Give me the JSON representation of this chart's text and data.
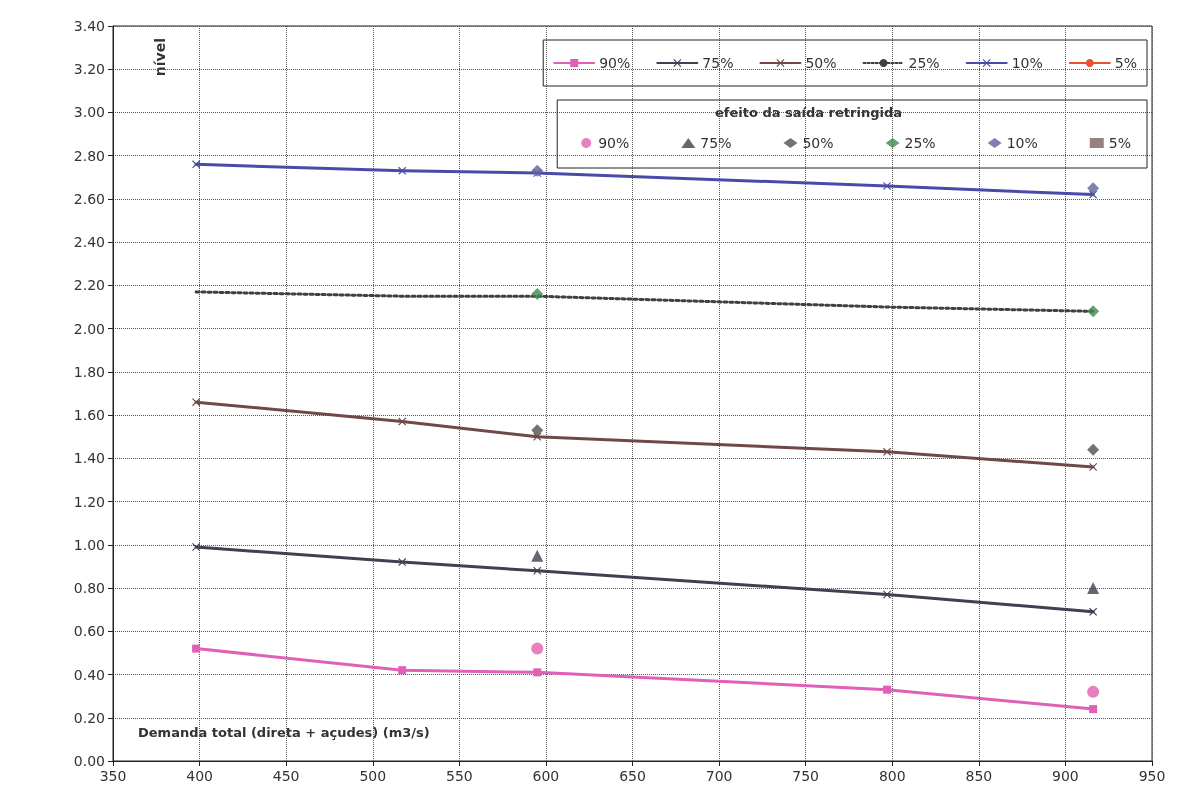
{
  "chart_data": {
    "type": "line",
    "xlabel": "Demanda total (direta + açudes) (m3/s)",
    "ylabel": "nível",
    "legend_title": "efeito da saída retringida",
    "legend": "top right",
    "grid": true,
    "xlim": [
      350,
      950
    ],
    "xticks": [
      350,
      400,
      450,
      500,
      550,
      600,
      650,
      700,
      750,
      800,
      850,
      900,
      950
    ],
    "ylim": [
      0,
      3.4
    ],
    "yticks": [
      {
        "value": 0,
        "label": "0.00"
      },
      {
        "value": 0.2,
        "label": "0.20"
      },
      {
        "value": 0.4,
        "label": "0.40"
      },
      {
        "value": 0.6,
        "label": "0.60"
      },
      {
        "value": 0.8,
        "label": "0.80"
      },
      {
        "value": 1,
        "label": "1.00"
      },
      {
        "value": 1.2,
        "label": "1.20"
      },
      {
        "value": 1.4,
        "label": "1.40"
      },
      {
        "value": 1.6,
        "label": "1.60"
      },
      {
        "value": 1.8,
        "label": "1.80"
      },
      {
        "value": 2,
        "label": "2.00"
      },
      {
        "value": 2.2,
        "label": "2.20"
      },
      {
        "value": 2.4,
        "label": "2.40"
      },
      {
        "value": 2.6,
        "label": "2.60"
      },
      {
        "value": 2.8,
        "label": "2.80"
      },
      {
        "value": 3,
        "label": "3.00"
      },
      {
        "value": 3.2,
        "label": "3.20"
      },
      {
        "value": 3.4,
        "label": "3.40"
      }
    ],
    "series": [
      {
        "name": "90%",
        "color": "#e060b8",
        "marker": "square",
        "line_style": "solid",
        "x": [
          398,
          517,
          595,
          797,
          916
        ],
        "values": [
          0.52,
          0.42,
          0.41,
          0.33,
          0.24
        ]
      },
      {
        "name": "75%",
        "color": "#404050",
        "marker": "cross",
        "line_style": "solid",
        "x": [
          398,
          517,
          595,
          797,
          916
        ],
        "values": [
          0.99,
          0.92,
          0.88,
          0.77,
          0.69
        ]
      },
      {
        "name": "50%",
        "color": "#704848",
        "marker": "cross",
        "line_style": "solid",
        "x": [
          398,
          517,
          595,
          797,
          916
        ],
        "values": [
          1.66,
          1.57,
          1.5,
          1.43,
          1.36
        ]
      },
      {
        "name": "25%",
        "color": "#404040",
        "marker": "none",
        "line_style": "dotted",
        "x": [
          398,
          517,
          595,
          797,
          916
        ],
        "values": [
          2.17,
          2.15,
          2.15,
          2.1,
          2.08
        ]
      },
      {
        "name": "10%",
        "color": "#4a4aa8",
        "marker": "cross",
        "line_style": "solid",
        "x": [
          398,
          517,
          595,
          797,
          916
        ],
        "values": [
          2.76,
          2.73,
          2.72,
          2.66,
          2.62
        ]
      },
      {
        "name": "5%",
        "color": "#e85030",
        "marker": "none",
        "line_style": "solid"
      },
      {
        "name": "90%",
        "type": "scatter",
        "color": "#e060b0",
        "marker": "circle",
        "x": [
          595,
          916
        ],
        "values": [
          0.52,
          0.32
        ]
      },
      {
        "name": "75%",
        "type": "scatter",
        "color": "#404050",
        "marker": "triangle",
        "x": [
          595,
          916
        ],
        "values": [
          0.95,
          0.8
        ]
      },
      {
        "name": "50%",
        "type": "scatter",
        "color": "#505050",
        "marker": "diamond",
        "x": [
          595,
          916
        ],
        "values": [
          1.53,
          1.44
        ]
      },
      {
        "name": "25%",
        "type": "scatter",
        "color": "#3a8a50",
        "marker": "diamond",
        "x": [
          595,
          916
        ],
        "values": [
          2.16,
          2.08
        ]
      },
      {
        "name": "10%",
        "type": "scatter",
        "color": "#6060a0",
        "marker": "diamond",
        "x": [
          595,
          916
        ],
        "values": [
          2.73,
          2.65
        ]
      },
      {
        "name": "5%",
        "type": "scatter",
        "color": "#806060",
        "marker": "square"
      }
    ]
  }
}
